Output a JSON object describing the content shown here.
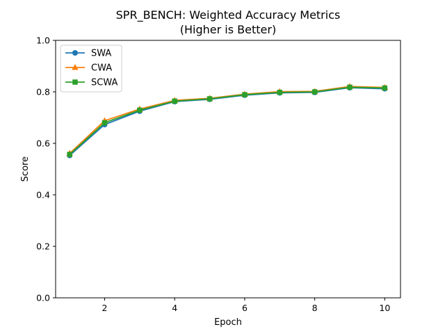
{
  "chart_data": {
    "type": "line",
    "title": "SPR_BENCH: Weighted Accuracy Metrics",
    "subtitle": "(Higher is Better)",
    "xlabel": "Epoch",
    "ylabel": "Score",
    "xlim": [
      0.6,
      10.45
    ],
    "ylim": [
      0.0,
      1.0
    ],
    "xticks": [
      2,
      4,
      6,
      8,
      10
    ],
    "yticks": [
      0.0,
      0.2,
      0.4,
      0.6,
      0.8,
      1.0
    ],
    "xtick_labels": [
      "2",
      "4",
      "6",
      "8",
      "10"
    ],
    "ytick_labels": [
      "0.0",
      "0.2",
      "0.4",
      "0.6",
      "0.8",
      "1.0"
    ],
    "grid": false,
    "legend_position": "top-left",
    "x": [
      1,
      2,
      3,
      4,
      5,
      6,
      7,
      8,
      9,
      10
    ],
    "series": [
      {
        "name": "SWA",
        "marker": "circle",
        "color": "#1f77b4",
        "values": [
          0.553,
          0.673,
          0.725,
          0.762,
          0.771,
          0.787,
          0.796,
          0.798,
          0.816,
          0.812
        ]
      },
      {
        "name": "CWA",
        "marker": "triangle",
        "color": "#ff7f0e",
        "values": [
          0.561,
          0.688,
          0.733,
          0.767,
          0.775,
          0.791,
          0.801,
          0.802,
          0.821,
          0.817
        ]
      },
      {
        "name": "SCWA",
        "marker": "square",
        "color": "#2ca02c",
        "values": [
          0.557,
          0.68,
          0.729,
          0.764,
          0.773,
          0.789,
          0.798,
          0.8,
          0.818,
          0.815
        ]
      }
    ]
  }
}
